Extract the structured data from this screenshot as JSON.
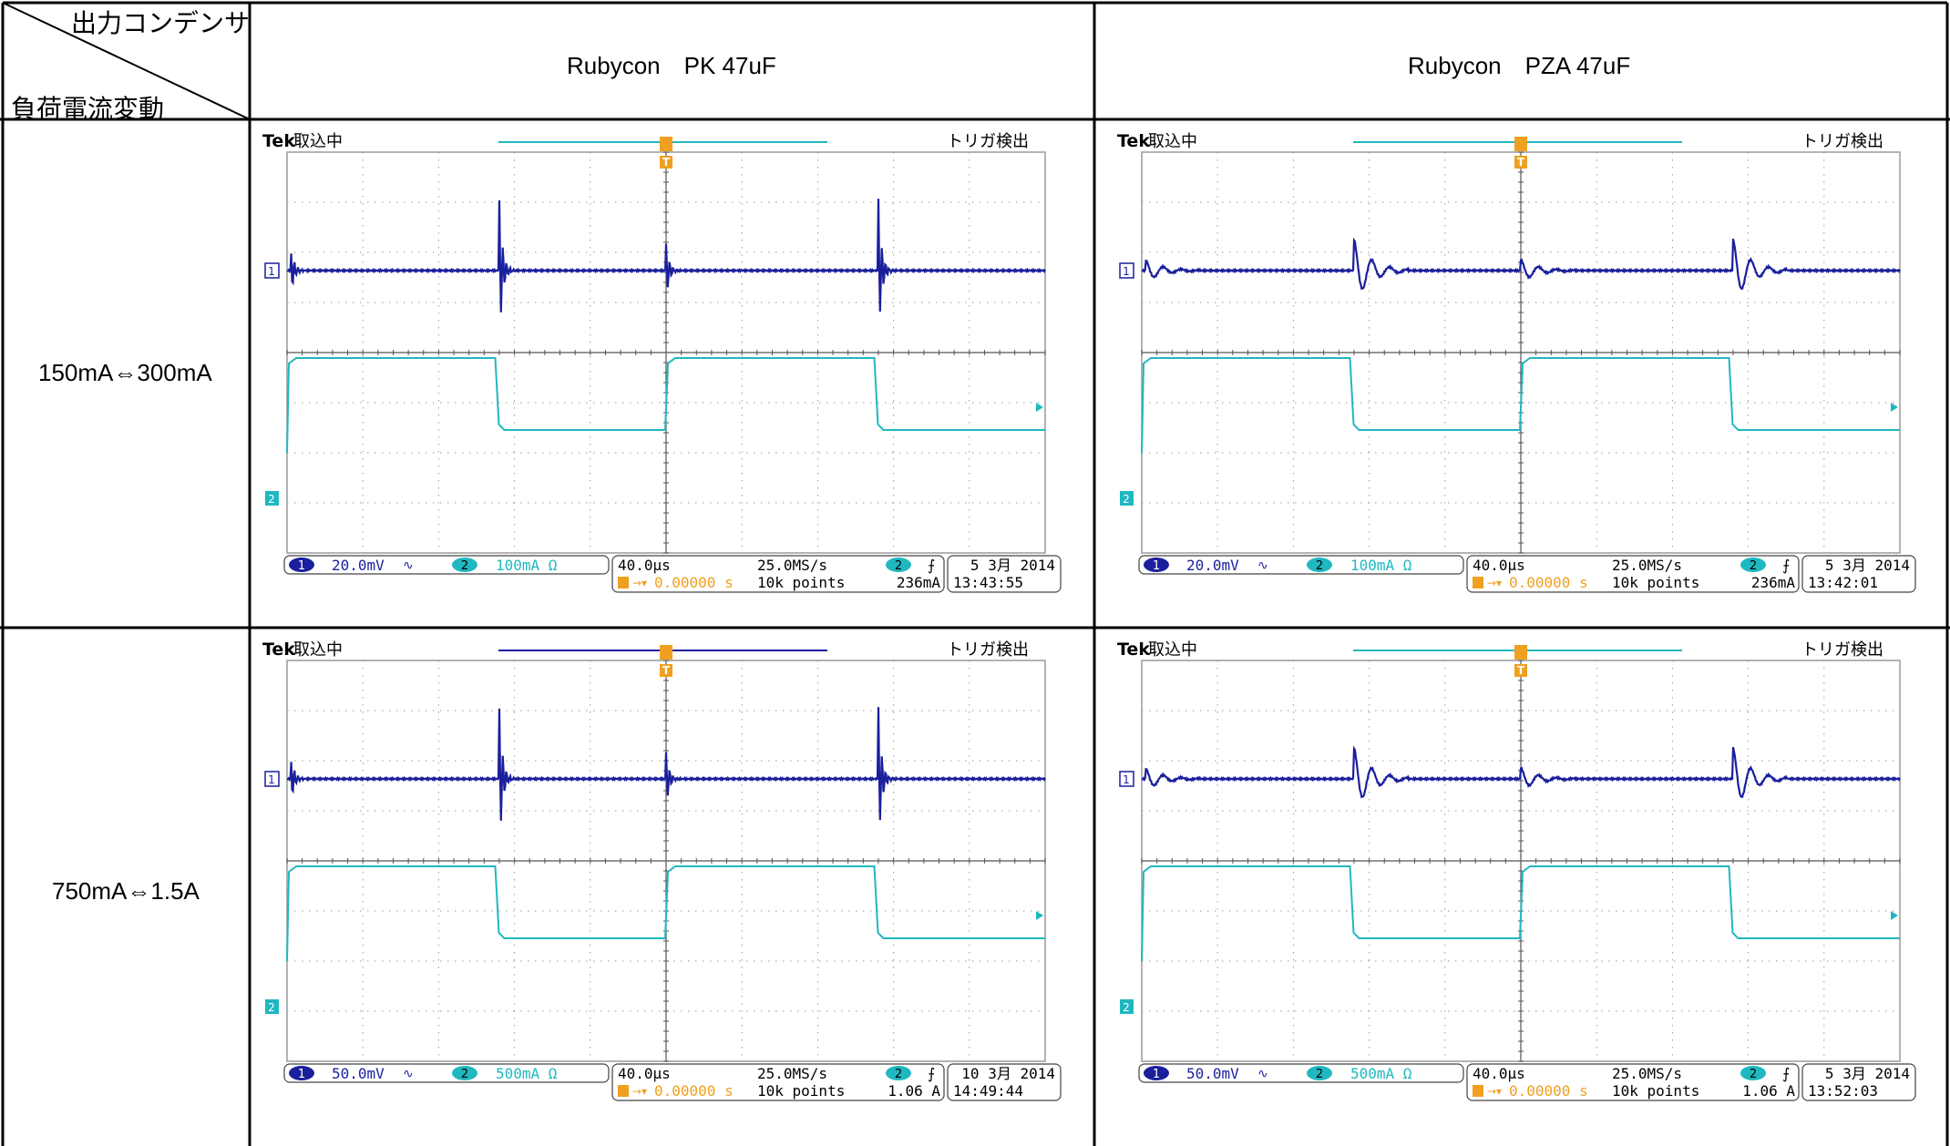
{
  "table": {
    "corner_top": "出力コンデンサ",
    "corner_bottom": "負荷電流変動",
    "columns": [
      "Rubycon　PK 47uF",
      "Rubycon　PZA 47uF"
    ],
    "rows": [
      "150mA⇔300mA",
      "750mA⇔1.5A"
    ]
  },
  "colors": {
    "ch1": "#1a1f9c",
    "ch2": "#1fb8c0",
    "trigger": "#f0a020",
    "grid": "#9a9a9a",
    "border": "#000000"
  },
  "scopes": [
    {
      "id": "pk-150",
      "brand": "Tek",
      "acq": "取込中",
      "trig_status": "トリガ検出",
      "ch1_num": "1",
      "ch1_scale": "20.0mV",
      "ch2_num": "2",
      "ch2_scale": "100mA Ω",
      "timebase": "40.0µs",
      "sample_rate": "25.0MS/s",
      "trig_pos": "0.00000 s",
      "record": "10k points",
      "trig_ch": "2",
      "trig_level": "236mA",
      "date": "5 3月  2014",
      "time": "13:43:55",
      "bar_color": "ch2",
      "ringing": "sharp"
    },
    {
      "id": "pza-150",
      "brand": "Tek",
      "acq": "取込中",
      "trig_status": "トリガ検出",
      "ch1_num": "1",
      "ch1_scale": "20.0mV",
      "ch2_num": "2",
      "ch2_scale": "100mA Ω",
      "timebase": "40.0µs",
      "sample_rate": "25.0MS/s",
      "trig_pos": "0.00000 s",
      "record": "10k points",
      "trig_ch": "2",
      "trig_level": "236mA",
      "date": "5 3月  2014",
      "time": "13:42:01",
      "bar_color": "ch2",
      "ringing": "damped"
    },
    {
      "id": "pk-1500",
      "brand": "Tek",
      "acq": "取込中",
      "trig_status": "トリガ検出",
      "ch1_num": "1",
      "ch1_scale": "50.0mV",
      "ch2_num": "2",
      "ch2_scale": "500mA Ω",
      "timebase": "40.0µs",
      "sample_rate": "25.0MS/s",
      "trig_pos": "0.00000 s",
      "record": "10k points",
      "trig_ch": "2",
      "trig_level": "1.06 A",
      "date": "10 3月  2014",
      "time": "14:49:44",
      "bar_color": "ch1",
      "ringing": "sharp"
    },
    {
      "id": "pza-1500",
      "brand": "Tek",
      "acq": "取込中",
      "trig_status": "トリガ検出",
      "ch1_num": "1",
      "ch1_scale": "50.0mV",
      "ch2_num": "2",
      "ch2_scale": "500mA Ω",
      "timebase": "40.0µs",
      "sample_rate": "25.0MS/s",
      "trig_pos": "0.00000 s",
      "record": "10k points",
      "trig_ch": "2",
      "trig_level": "1.06 A",
      "date": "5 3月  2014",
      "time": "13:52:03",
      "bar_color": "ch2",
      "ringing": "damped"
    }
  ]
}
